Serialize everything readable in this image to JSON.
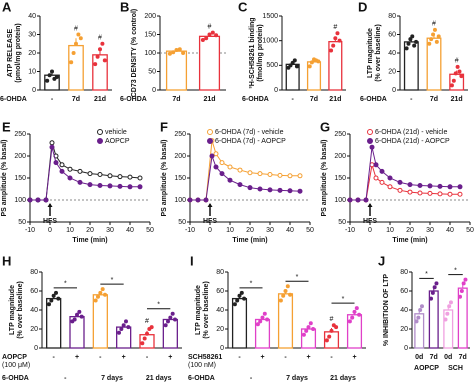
{
  "chart_data": [
    {
      "type": "bar",
      "panel": "A",
      "ylabel": [
        "ATP RELEASE",
        "(pmol/mg protein)"
      ],
      "ylim": [
        0,
        40
      ],
      "yticks": [
        0,
        10,
        20,
        30,
        40
      ],
      "row_label": "6-OHDA",
      "categories": [
        "-",
        "7d",
        "21d"
      ],
      "values": [
        8,
        24,
        19
      ],
      "errors": [
        2,
        4,
        3
      ],
      "colors": [
        "#222222",
        "#f5a033",
        "#e8323c"
      ],
      "points": [
        [
          5,
          8,
          10,
          6,
          7
        ],
        [
          15,
          20,
          25,
          30,
          28
        ],
        [
          14,
          18,
          22,
          25,
          16
        ]
      ],
      "markers": [
        null,
        "#",
        "#"
      ]
    },
    {
      "type": "bar",
      "panel": "B",
      "ylabel": [
        "CD73 DENSITY (% control)"
      ],
      "ylim": [
        0,
        200
      ],
      "yticks": [
        0,
        50,
        100,
        150,
        200
      ],
      "reference_line": 100,
      "row_label": "6-OHDA",
      "categories": [
        "7d",
        "21d"
      ],
      "values": [
        105,
        145
      ],
      "errors": [
        5,
        6
      ],
      "colors": [
        "#f5a033",
        "#e8323c"
      ],
      "points": [
        [
          98,
          102,
          108,
          110,
          100
        ],
        [
          135,
          140,
          150,
          155,
          148
        ]
      ],
      "markers": [
        null,
        "#"
      ]
    },
    {
      "type": "bar",
      "panel": "C",
      "ylabel": [
        "³H-SCH58261 binding",
        "(fmol/mg protein)"
      ],
      "ylim": [
        0,
        1500
      ],
      "yticks": [
        0,
        500,
        1000,
        1500
      ],
      "row_label": "6-OHDA",
      "categories": [
        "-",
        "7d",
        "21d"
      ],
      "values": [
        520,
        570,
        980
      ],
      "errors": [
        40,
        50,
        90
      ],
      "colors": [
        "#222222",
        "#f5a033",
        "#e8323c"
      ],
      "points": [
        [
          450,
          500,
          550,
          600,
          480
        ],
        [
          480,
          560,
          620,
          600,
          580
        ],
        [
          800,
          900,
          1050,
          1150,
          1000
        ]
      ],
      "markers": [
        null,
        null,
        "#"
      ]
    },
    {
      "type": "bar",
      "panel": "D",
      "ylabel": [
        "LTP magnitude",
        "(% over baseline)"
      ],
      "ylim": [
        0,
        80
      ],
      "yticks": [
        0,
        20,
        40,
        60,
        80
      ],
      "row_label": "6-OHDA",
      "categories": [
        "-",
        "7d",
        "21d"
      ],
      "values": [
        52,
        56,
        17
      ],
      "errors": [
        3,
        3,
        4
      ],
      "colors": [
        "#222222",
        "#f5a033",
        "#e8323c"
      ],
      "points": [
        [
          45,
          50,
          55,
          58,
          48,
          52
        ],
        [
          50,
          55,
          60,
          65,
          52,
          58
        ],
        [
          5,
          10,
          18,
          25,
          20,
          15
        ]
      ],
      "markers": [
        null,
        "#",
        "#"
      ]
    },
    {
      "type": "line",
      "panel": "E",
      "ylabel": [
        "PS amplitude (% basal)"
      ],
      "xlabel": "Time (min)",
      "annotation": "HFS",
      "reference_line": 100,
      "xlim": [
        -10,
        50
      ],
      "xticks": [
        -10,
        0,
        10,
        20,
        30,
        40,
        50
      ],
      "ylim": [
        50,
        250
      ],
      "yticks": [
        50,
        100,
        150,
        200,
        250
      ],
      "x": [
        -10,
        -6,
        -2,
        1,
        3,
        6,
        10,
        15,
        20,
        25,
        30,
        35,
        40,
        45
      ],
      "series": [
        {
          "name": "vehicle",
          "color": "#222222",
          "open": true,
          "values": [
            100,
            100,
            100,
            230,
            200,
            180,
            170,
            165,
            160,
            158,
            155,
            153,
            152,
            150
          ]
        },
        {
          "name": "AOPCP",
          "color": "#6a1f8c",
          "open": false,
          "values": [
            100,
            100,
            100,
            220,
            185,
            165,
            150,
            140,
            135,
            133,
            132,
            131,
            130,
            130
          ]
        }
      ]
    },
    {
      "type": "line",
      "panel": "F",
      "ylabel": [
        "PS amplitude (% basal)"
      ],
      "xlabel": "Time (min)",
      "annotation": "HFS",
      "reference_line": 100,
      "xlim": [
        -10,
        50
      ],
      "xticks": [
        -10,
        0,
        10,
        20,
        30,
        40,
        50
      ],
      "ylim": [
        50,
        250
      ],
      "yticks": [
        50,
        100,
        150,
        200,
        250
      ],
      "x": [
        -10,
        -6,
        -2,
        1,
        3,
        6,
        10,
        15,
        20,
        25,
        30,
        35,
        40,
        45
      ],
      "series": [
        {
          "name": "6-OHDA (7d) - vehicle",
          "color": "#f5a033",
          "open": true,
          "values": [
            100,
            100,
            100,
            235,
            205,
            185,
            175,
            168,
            162,
            160,
            158,
            156,
            155,
            155
          ]
        },
        {
          "name": "6-OHDA (7d) - AOPCP",
          "color": "#6a1f8c",
          "open": false,
          "values": [
            100,
            100,
            100,
            200,
            175,
            160,
            145,
            135,
            128,
            125,
            123,
            122,
            121,
            120
          ]
        }
      ]
    },
    {
      "type": "line",
      "panel": "G",
      "ylabel": [
        "PS amplitude (% basal)"
      ],
      "xlabel": "Time (min)",
      "annotation": "HFS",
      "reference_line": 100,
      "xlim": [
        -10,
        50
      ],
      "xticks": [
        -10,
        0,
        10,
        20,
        30,
        40,
        50
      ],
      "ylim": [
        50,
        250
      ],
      "yticks": [
        50,
        100,
        150,
        200,
        250
      ],
      "x": [
        -10,
        -6,
        -2,
        1,
        3,
        6,
        10,
        15,
        20,
        25,
        30,
        35,
        40,
        45
      ],
      "series": [
        {
          "name": "6-OHDA (21d) - vehicle",
          "color": "#e8323c",
          "open": true,
          "values": [
            100,
            100,
            100,
            180,
            150,
            140,
            130,
            122,
            118,
            116,
            115,
            114,
            113,
            113
          ]
        },
        {
          "name": "6-OHDA (21d) - AOPCP",
          "color": "#6a1f8c",
          "open": false,
          "values": [
            100,
            100,
            100,
            220,
            180,
            165,
            150,
            140,
            135,
            133,
            132,
            131,
            130,
            130
          ]
        }
      ]
    },
    {
      "type": "bar",
      "panel": "H",
      "ylabel": [
        "LTP magnitude",
        "(% over baseline)"
      ],
      "ylim": [
        0,
        80
      ],
      "yticks": [
        0,
        20,
        40,
        60,
        80
      ],
      "treatment_label": "AOPCP",
      "treatment_note": "(100 μM)",
      "treatment_color": "#6a1f8c",
      "row_label": "6-OHDA",
      "categories": [
        "-",
        "+",
        "-",
        "+",
        "-",
        "+"
      ],
      "groups": [
        "-",
        "7 days",
        "21 days"
      ],
      "pair_labels": [
        "*",
        "*",
        "*"
      ],
      "values": [
        52,
        33,
        56,
        22,
        14,
        30
      ],
      "errors": [
        3,
        3,
        3,
        3,
        4,
        3
      ],
      "colors": [
        "#222222",
        "#6a1f8c",
        "#f5a033",
        "#6a1f8c",
        "#e8323c",
        "#6a1f8c"
      ],
      "points": [
        [
          46,
          50,
          55,
          58,
          52
        ],
        [
          28,
          30,
          35,
          38,
          33
        ],
        [
          50,
          54,
          58,
          62,
          56
        ],
        [
          16,
          20,
          24,
          28,
          22
        ],
        [
          5,
          10,
          15,
          20,
          22
        ],
        [
          24,
          28,
          32,
          36,
          30
        ]
      ],
      "markers": [
        null,
        null,
        null,
        null,
        "#",
        null
      ]
    },
    {
      "type": "bar",
      "panel": "I",
      "ylabel": [
        "LTP magnitude",
        "(% over baseline)"
      ],
      "ylim": [
        0,
        80
      ],
      "yticks": [
        0,
        20,
        40,
        60,
        80
      ],
      "treatment_label": "SCH58261",
      "treatment_note": "(100 nM)",
      "treatment_color": "#e040c8",
      "row_label": "6-OHDA",
      "categories": [
        "-",
        "+",
        "-",
        "+",
        "-",
        "+"
      ],
      "groups": [
        "-",
        "7 days",
        "21 days"
      ],
      "pair_labels": [
        "*",
        "*",
        "*"
      ],
      "values": [
        52,
        30,
        57,
        20,
        17,
        35
      ],
      "errors": [
        3,
        3,
        4,
        3,
        4,
        4
      ],
      "colors": [
        "#222222",
        "#e040c8",
        "#f5a033",
        "#e040c8",
        "#e8323c",
        "#e040c8"
      ],
      "points": [
        [
          46,
          50,
          55,
          58,
          52
        ],
        [
          25,
          28,
          32,
          36,
          30
        ],
        [
          50,
          55,
          60,
          65,
          56
        ],
        [
          14,
          18,
          22,
          26,
          20
        ],
        [
          8,
          12,
          18,
          24,
          22
        ],
        [
          28,
          32,
          38,
          42,
          35
        ]
      ],
      "markers": [
        null,
        null,
        null,
        null,
        "#",
        null
      ]
    },
    {
      "type": "bar",
      "panel": "J",
      "ylabel": [
        "% INHIBITION OF LTP"
      ],
      "ylim": [
        0,
        80
      ],
      "yticks": [
        0,
        20,
        40,
        60,
        80
      ],
      "categories": [
        "0d",
        "7d",
        "0d",
        "7d"
      ],
      "groups": [
        "AOPCP",
        "SCH"
      ],
      "group_colors": [
        "#6a1f8c",
        "#e040c8"
      ],
      "pair_labels": [
        "*",
        "*"
      ],
      "values": [
        36,
        60,
        40,
        63
      ],
      "errors": [
        5,
        5,
        5,
        6
      ],
      "colors": [
        "#b08cc8",
        "#6a1f8c",
        "#f0a0e0",
        "#e040c8"
      ],
      "points": [
        [
          28,
          32,
          40,
          44
        ],
        [
          52,
          58,
          64,
          68
        ],
        [
          30,
          36,
          44,
          48
        ],
        [
          54,
          60,
          68,
          72
        ]
      ],
      "markers": [
        null,
        null,
        null,
        null
      ]
    }
  ]
}
